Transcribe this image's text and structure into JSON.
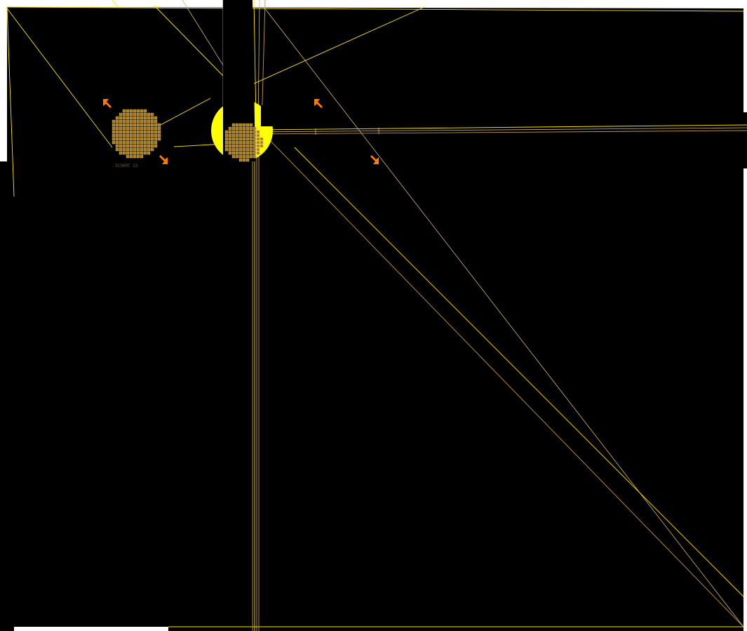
{
  "canvas": {
    "background": "#000000",
    "outer_background": "#ffffff",
    "accent_colors": {
      "wire_yellow": "#ffe600",
      "wire_gold": "#c89a3a",
      "wire_tan": "#d7b870",
      "pad_gold": "#c8a040",
      "pad_fill": "#a07820",
      "marker_orange": "#ff7a00",
      "die_yellow": "#ffff00"
    }
  },
  "components": {
    "left_pad_array": {
      "name": "left-bond-pad-array",
      "label": "",
      "small_label": "SCSKMT 23"
    },
    "center_die": {
      "name": "center-die",
      "label": ""
    }
  },
  "markers": [
    {
      "name": "align-marker-top-left",
      "icon": "orange-corner-marker"
    },
    {
      "name": "align-marker-bottom-left",
      "icon": "orange-corner-marker"
    },
    {
      "name": "align-marker-top-right",
      "icon": "orange-corner-marker"
    },
    {
      "name": "align-marker-bottom-right",
      "icon": "orange-corner-marker"
    }
  ]
}
